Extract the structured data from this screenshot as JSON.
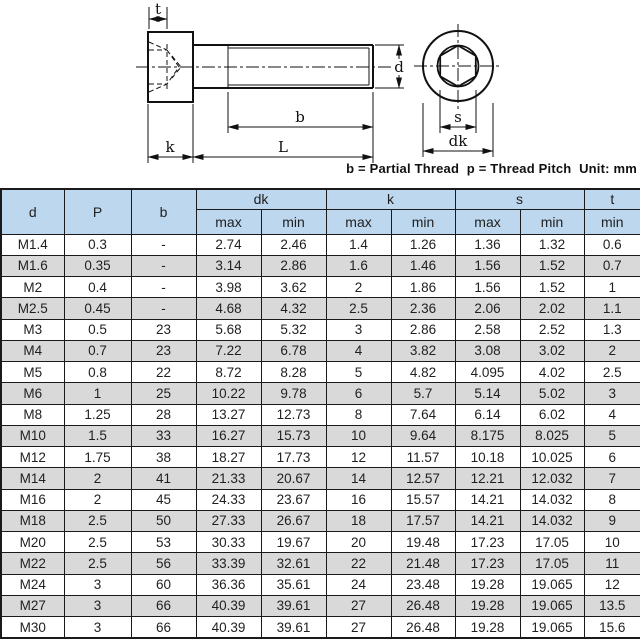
{
  "note": "b = Partial Thread  p = Thread Pitch  Unit: mm",
  "colors": {
    "header_bg": "#BDD7EE",
    "stripe_bg": "#D9D9D9",
    "grid": "#1a1a1a",
    "text": "#1f1f1f"
  },
  "diagram": {
    "labels": {
      "t": "t",
      "d": "d",
      "b": "b",
      "k": "k",
      "L": "L",
      "s": "s",
      "dk": "dk"
    }
  },
  "table": {
    "header": {
      "d": "d",
      "p": "P",
      "b": "b",
      "dk": "dk",
      "k": "k",
      "s": "s",
      "t": "t",
      "max": "max",
      "min": "min"
    },
    "rows": [
      [
        "M1.4",
        "0.3",
        "-",
        "2.74",
        "2.46",
        "1.4",
        "1.26",
        "1.36",
        "1.32",
        "0.6"
      ],
      [
        "M1.6",
        "0.35",
        "-",
        "3.14",
        "2.86",
        "1.6",
        "1.46",
        "1.56",
        "1.52",
        "0.7"
      ],
      [
        "M2",
        "0.4",
        "-",
        "3.98",
        "3.62",
        "2",
        "1.86",
        "1.56",
        "1.52",
        "1"
      ],
      [
        "M2.5",
        "0.45",
        "-",
        "4.68",
        "4.32",
        "2.5",
        "2.36",
        "2.06",
        "2.02",
        "1.1"
      ],
      [
        "M3",
        "0.5",
        "23",
        "5.68",
        "5.32",
        "3",
        "2.86",
        "2.58",
        "2.52",
        "1.3"
      ],
      [
        "M4",
        "0.7",
        "23",
        "7.22",
        "6.78",
        "4",
        "3.82",
        "3.08",
        "3.02",
        "2"
      ],
      [
        "M5",
        "0.8",
        "22",
        "8.72",
        "8.28",
        "5",
        "4.82",
        "4.095",
        "4.02",
        "2.5"
      ],
      [
        "M6",
        "1",
        "25",
        "10.22",
        "9.78",
        "6",
        "5.7",
        "5.14",
        "5.02",
        "3"
      ],
      [
        "M8",
        "1.25",
        "28",
        "13.27",
        "12.73",
        "8",
        "7.64",
        "6.14",
        "6.02",
        "4"
      ],
      [
        "M10",
        "1.5",
        "33",
        "16.27",
        "15.73",
        "10",
        "9.64",
        "8.175",
        "8.025",
        "5"
      ],
      [
        "M12",
        "1.75",
        "38",
        "18.27",
        "17.73",
        "12",
        "11.57",
        "10.18",
        "10.025",
        "6"
      ],
      [
        "M14",
        "2",
        "41",
        "21.33",
        "20.67",
        "14",
        "12.57",
        "12.21",
        "12.032",
        "7"
      ],
      [
        "M16",
        "2",
        "45",
        "24.33",
        "23.67",
        "16",
        "15.57",
        "14.21",
        "14.032",
        "8"
      ],
      [
        "M18",
        "2.5",
        "50",
        "27.33",
        "26.67",
        "18",
        "17.57",
        "14.21",
        "14.032",
        "9"
      ],
      [
        "M20",
        "2.5",
        "53",
        "30.33",
        "19.67",
        "20",
        "19.48",
        "17.23",
        "17.05",
        "10"
      ],
      [
        "M22",
        "2.5",
        "56",
        "33.39",
        "32.61",
        "22",
        "21.48",
        "17.23",
        "17.05",
        "11"
      ],
      [
        "M24",
        "3",
        "60",
        "36.36",
        "35.61",
        "24",
        "23.48",
        "19.28",
        "19.065",
        "12"
      ],
      [
        "M27",
        "3",
        "66",
        "40.39",
        "39.61",
        "27",
        "26.48",
        "19.28",
        "19.065",
        "13.5"
      ],
      [
        "M30",
        "3",
        "66",
        "40.39",
        "39.61",
        "27",
        "26.48",
        "19.28",
        "19.065",
        "15.6"
      ]
    ]
  }
}
